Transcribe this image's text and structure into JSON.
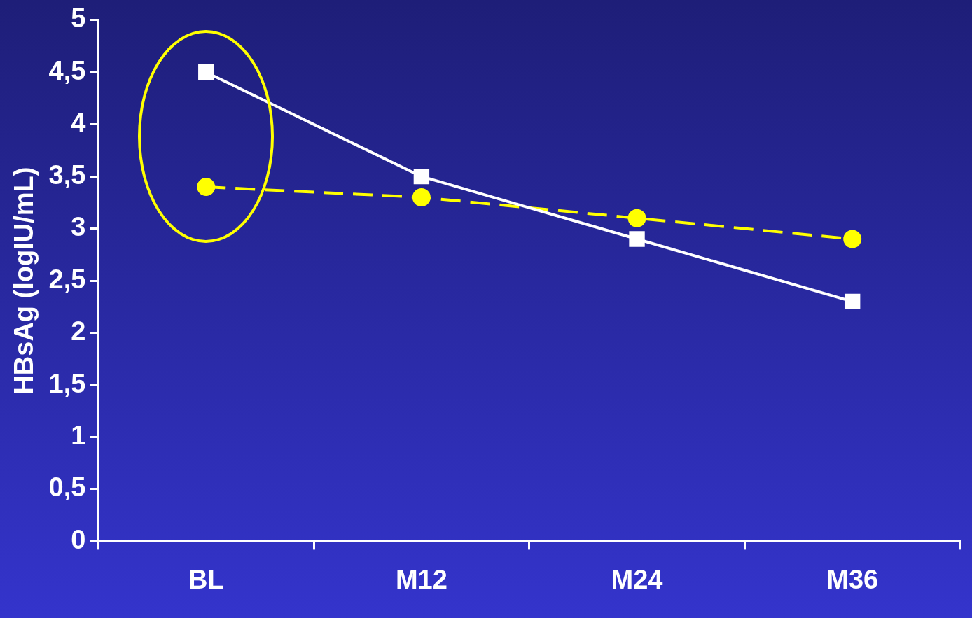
{
  "chart_data": {
    "type": "line",
    "ylabel": "HBsAg (logIU/mL)",
    "categories": [
      "BL",
      "M12",
      "M24",
      "M36"
    ],
    "series": [
      {
        "color": "#ffffff",
        "values": [
          4.5,
          3.5,
          2.9,
          2.3
        ],
        "marker": "square",
        "line_style": "solid"
      },
      {
        "color": "#ffff00",
        "values": [
          3.4,
          3.3,
          3.1,
          2.9
        ],
        "marker": "circle",
        "line_style": "dashed"
      }
    ],
    "ylim": [
      0,
      5
    ],
    "yticks": [
      0,
      {
        "value": 0.5,
        "label": "0,5"
      },
      1,
      {
        "value": 1.5,
        "label": "1,5"
      },
      2,
      {
        "value": 2.5,
        "label": "2,5"
      },
      3,
      {
        "value": 3.5,
        "label": "3,5"
      },
      4,
      {
        "value": 4.5,
        "label": "4,5"
      },
      5
    ]
  }
}
